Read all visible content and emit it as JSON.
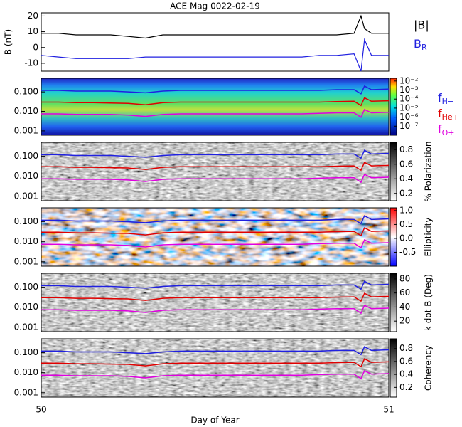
{
  "chart_data": [
    {
      "type": "line",
      "title": "ACE Mag 0022-02-19",
      "ylabel": "B (nT)",
      "x": [
        50,
        50.05,
        50.1,
        50.15,
        50.2,
        50.25,
        50.3,
        50.35,
        50.4,
        50.45,
        50.5,
        50.55,
        50.6,
        50.65,
        50.7,
        50.75,
        50.8,
        50.85,
        50.9,
        50.92,
        50.93,
        50.95,
        51
      ],
      "series": [
        {
          "name": "|B|",
          "color": "#000000",
          "values": [
            9,
            9,
            8,
            8,
            8,
            7,
            6,
            8,
            8,
            8,
            8,
            8,
            8,
            8,
            8,
            8,
            8,
            8,
            9,
            20,
            12,
            9,
            9
          ]
        },
        {
          "name": "BR",
          "color": "#2020e0",
          "values": [
            -5,
            -6,
            -7,
            -7,
            -7,
            -7,
            -6,
            -6,
            -6,
            -6,
            -6,
            -6,
            -6,
            -6,
            -6,
            -6,
            -5,
            -5,
            -4,
            -15,
            5,
            -5,
            -5
          ]
        }
      ],
      "xlim": [
        50,
        51
      ],
      "ylim": [
        -15,
        22
      ],
      "yticks": [
        -10,
        0,
        10,
        20
      ]
    },
    {
      "type": "spectrogram",
      "palette": "rainbow",
      "xlim": [
        50,
        51
      ],
      "ylim": [
        0.0006,
        0.5
      ],
      "log_y": true,
      "yticks": [
        {
          "value": 0.001,
          "label": "0.001"
        },
        {
          "value": 0.01,
          "label": "0.010"
        },
        {
          "value": 0.1,
          "label": "0.100"
        }
      ],
      "x": [
        50,
        50.05,
        50.1,
        50.15,
        50.2,
        50.25,
        50.3,
        50.35,
        50.4,
        50.45,
        50.5,
        50.55,
        50.6,
        50.65,
        50.7,
        50.75,
        50.8,
        50.85,
        50.9,
        50.92,
        50.93,
        50.95,
        51
      ],
      "series": [
        {
          "name": "fH+",
          "color": "#2020e0",
          "values": [
            0.12,
            0.12,
            0.11,
            0.11,
            0.11,
            0.1,
            0.09,
            0.11,
            0.12,
            0.12,
            0.12,
            0.12,
            0.12,
            0.12,
            0.12,
            0.12,
            0.12,
            0.13,
            0.13,
            0.08,
            0.2,
            0.13,
            0.14
          ]
        },
        {
          "name": "fHe+",
          "color": "#e00000",
          "values": [
            0.03,
            0.03,
            0.028,
            0.028,
            0.027,
            0.026,
            0.022,
            0.028,
            0.03,
            0.03,
            0.03,
            0.03,
            0.03,
            0.03,
            0.03,
            0.03,
            0.03,
            0.032,
            0.033,
            0.02,
            0.05,
            0.033,
            0.035
          ]
        },
        {
          "name": "fO+",
          "color": "#e000e0",
          "values": [
            0.0075,
            0.0075,
            0.007,
            0.007,
            0.007,
            0.0065,
            0.0055,
            0.007,
            0.0075,
            0.0075,
            0.0075,
            0.0075,
            0.0075,
            0.0075,
            0.0075,
            0.0075,
            0.008,
            0.0085,
            0.0085,
            0.005,
            0.0125,
            0.0085,
            0.009
          ]
        }
      ],
      "clim": [
        1e-08,
        0.02
      ],
      "log_c": true,
      "cticks": [
        {
          "value": 0.01,
          "label": "10⁻²"
        },
        {
          "value": 0.001,
          "label": "10⁻³"
        },
        {
          "value": 0.0001,
          "label": "10⁻⁴"
        },
        {
          "value": 1e-05,
          "label": "10⁻⁵"
        },
        {
          "value": 1e-06,
          "label": "10⁻⁶"
        },
        {
          "value": 1e-07,
          "label": "10⁻⁷"
        }
      ]
    },
    {
      "type": "spectrogram",
      "palette": "gray",
      "clabel": "% Polarization",
      "xlim": [
        50,
        51
      ],
      "ylim": [
        0.0006,
        0.5
      ],
      "log_y": true,
      "yticks": [
        {
          "value": 0.001,
          "label": "0.001"
        },
        {
          "value": 0.01,
          "label": "0.010"
        },
        {
          "value": 0.1,
          "label": "0.100"
        }
      ],
      "clim": [
        0.1,
        0.9
      ],
      "cticks": [
        0.2,
        0.4,
        0.6,
        0.8
      ]
    },
    {
      "type": "spectrogram",
      "palette": "bwr",
      "clabel": "Ellipticity",
      "xlim": [
        50,
        51
      ],
      "ylim": [
        0.0006,
        0.5
      ],
      "log_y": true,
      "yticks": [
        {
          "value": 0.001,
          "label": "0.001"
        },
        {
          "value": 0.01,
          "label": "0.010"
        },
        {
          "value": 0.1,
          "label": "0.100"
        }
      ],
      "clim": [
        -1,
        1.1
      ],
      "cticks": [
        -0.5,
        {
          "value": 0,
          "label": "0.0"
        },
        0.5,
        {
          "value": 1,
          "label": "1.0"
        }
      ]
    },
    {
      "type": "spectrogram",
      "palette": "gray",
      "clabel": "k dot B (Deg)",
      "xlim": [
        50,
        51
      ],
      "ylim": [
        0.0006,
        0.5
      ],
      "log_y": true,
      "yticks": [
        {
          "value": 0.001,
          "label": "0.001"
        },
        {
          "value": 0.01,
          "label": "0.010"
        },
        {
          "value": 0.1,
          "label": "0.100"
        }
      ],
      "clim": [
        5,
        88
      ],
      "cticks": [
        20,
        40,
        60,
        80
      ]
    },
    {
      "type": "spectrogram",
      "palette": "gray",
      "clabel": "Coherency",
      "xlim": [
        50,
        51
      ],
      "ylim": [
        0.0006,
        0.5
      ],
      "log_y": true,
      "yticks": [
        {
          "value": 0.001,
          "label": "0.001"
        },
        {
          "value": 0.01,
          "label": "0.010"
        },
        {
          "value": 0.1,
          "label": "0.100"
        }
      ],
      "clim": [
        0.05,
        0.95
      ],
      "cticks": [
        0.2,
        0.4,
        0.6,
        0.8
      ],
      "xlabel": "Day of Year",
      "xticks": [
        50,
        51
      ]
    }
  ]
}
